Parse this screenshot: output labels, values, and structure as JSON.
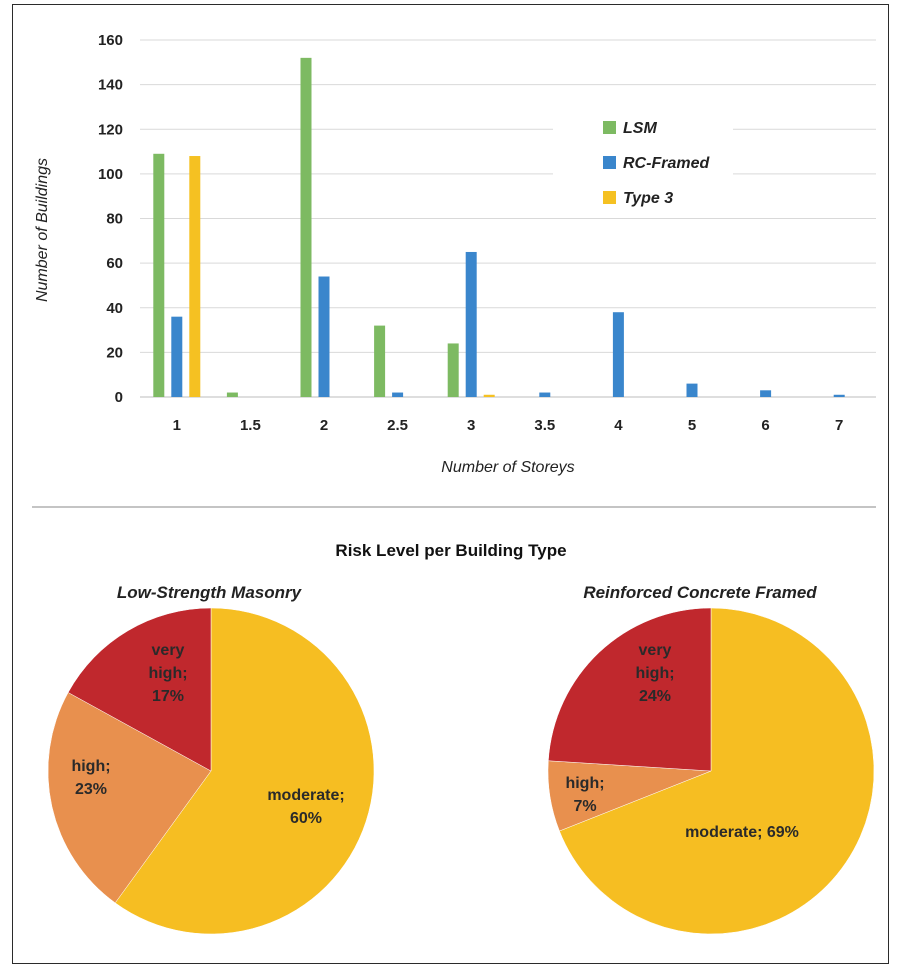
{
  "chart_data": [
    {
      "type": "bar",
      "categories": [
        "1",
        "1.5",
        "2",
        "2.5",
        "3",
        "3.5",
        "4",
        "5",
        "6",
        "7"
      ],
      "series": [
        {
          "name": "LSM",
          "color": "#7dba62",
          "values": [
            109,
            2,
            152,
            32,
            24,
            0,
            0,
            0,
            0,
            0
          ]
        },
        {
          "name": "RC-Framed",
          "color": "#3a86cc",
          "values": [
            36,
            0,
            54,
            2,
            65,
            2,
            38,
            6,
            3,
            1
          ]
        },
        {
          "name": "Type 3",
          "color": "#f5c122",
          "values": [
            108,
            0,
            0,
            0,
            1,
            0,
            0,
            0,
            0,
            0
          ]
        }
      ],
      "yticks": [
        "0",
        "20",
        "40",
        "60",
        "80",
        "100",
        "120",
        "140",
        "160"
      ],
      "ylim": [
        0,
        160
      ],
      "xlabel": "Number of Storeys",
      "ylabel": "Number of Buildings",
      "grid": true,
      "legend": "top-right"
    },
    {
      "type": "pie",
      "title": "Low-Strength Masonry",
      "slices": [
        {
          "label": "moderate",
          "value": 60,
          "color": "#f6be22",
          "text": [
            "moderate;",
            "60%"
          ]
        },
        {
          "label": "high",
          "value": 23,
          "color": "#e8904e",
          "text": [
            "high;",
            "23%"
          ]
        },
        {
          "label": "very high",
          "value": 17,
          "color": "#c0282d",
          "text": [
            "very",
            "high;",
            "17%"
          ]
        }
      ]
    },
    {
      "type": "pie",
      "title": "Reinforced Concrete Framed",
      "slices": [
        {
          "label": "moderate",
          "value": 69,
          "color": "#f6be22",
          "text": [
            "moderate; 69%"
          ]
        },
        {
          "label": "high",
          "value": 7,
          "color": "#e8904e",
          "text": [
            "high;",
            "7%"
          ]
        },
        {
          "label": "very high",
          "value": 24,
          "color": "#c0282d",
          "text": [
            "very",
            "high;",
            "24%"
          ]
        }
      ]
    }
  ],
  "section_title": "Risk Level per Building Type"
}
